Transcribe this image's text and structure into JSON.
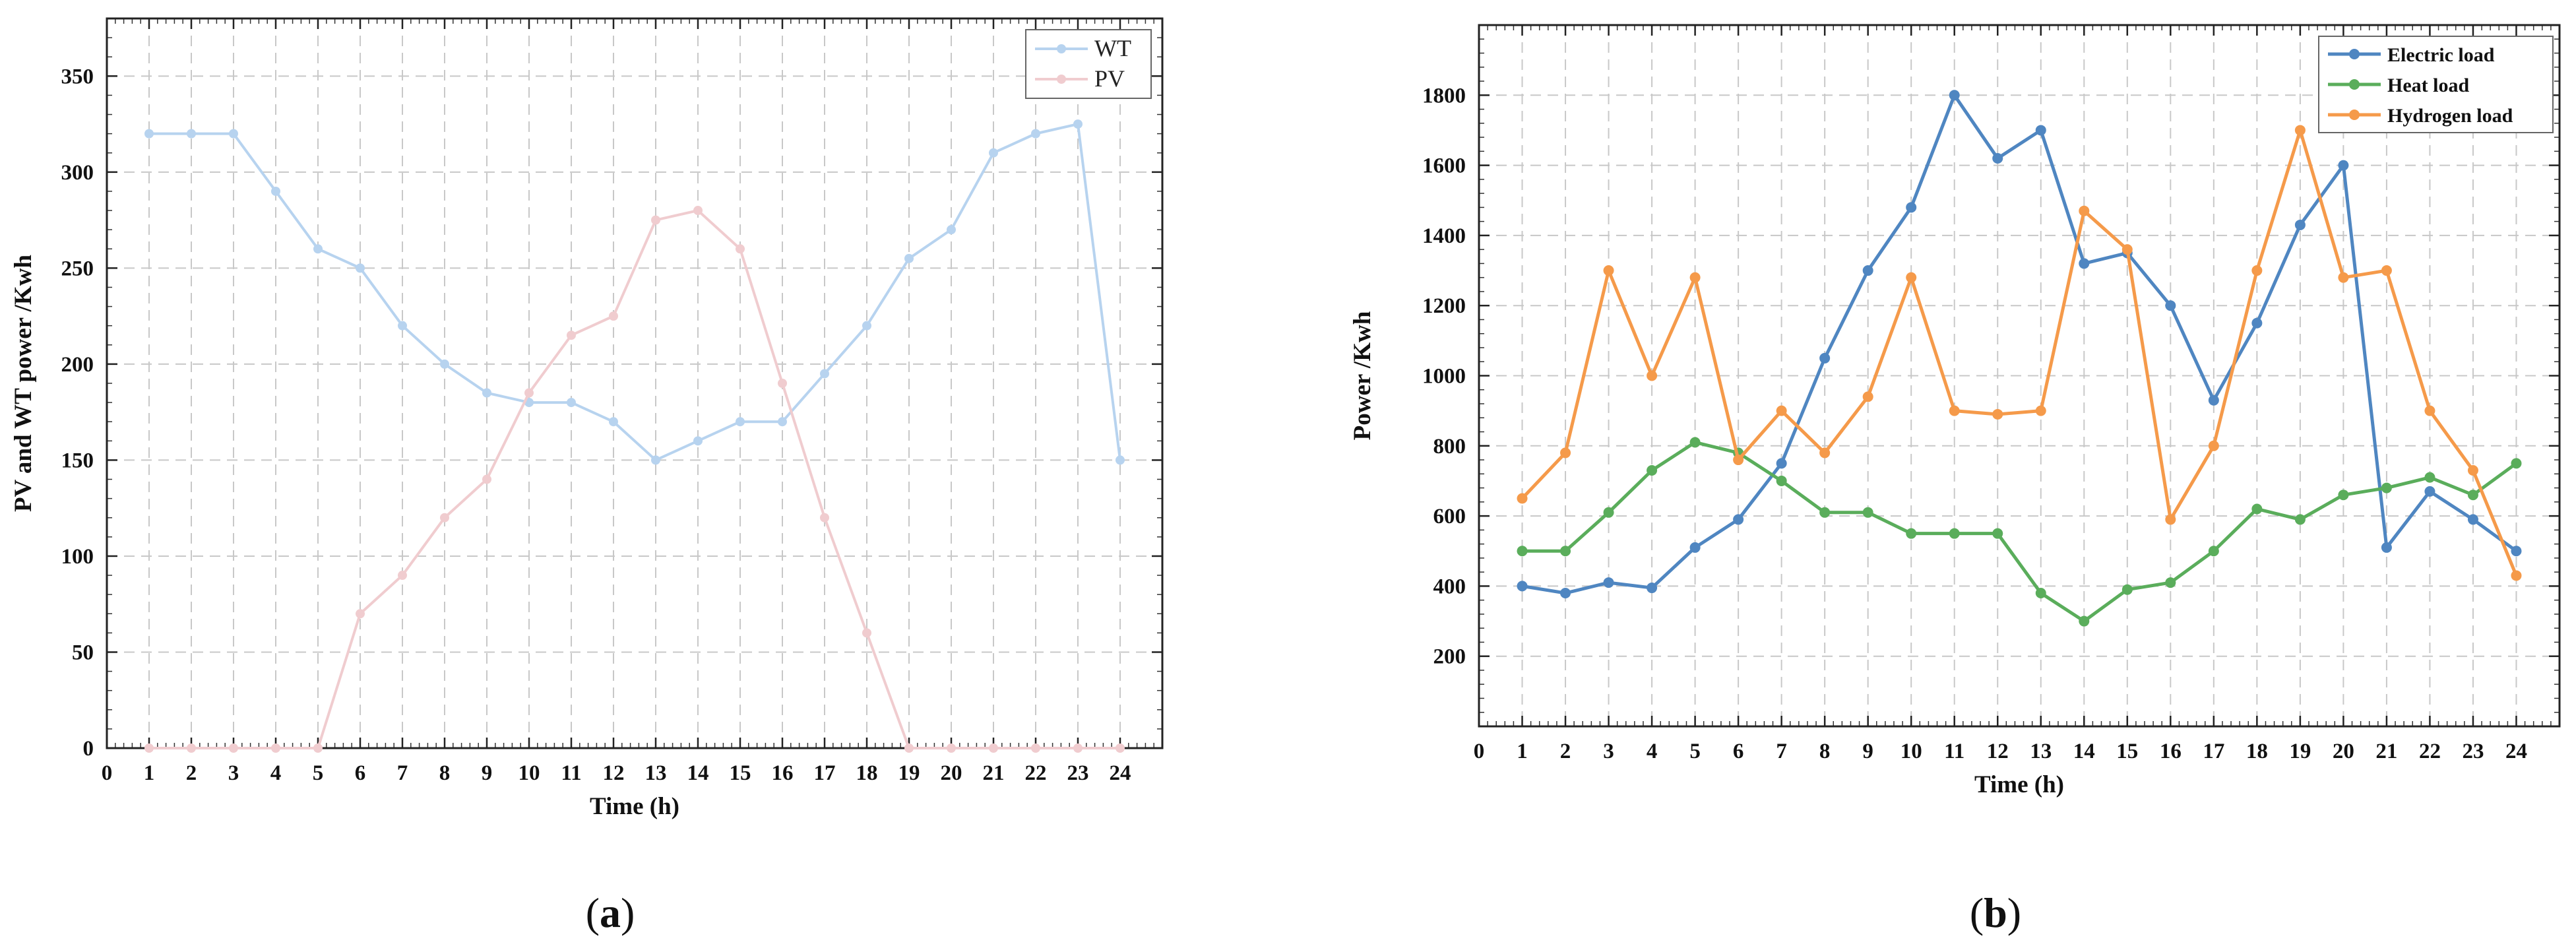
{
  "chart_data": [
    {
      "type": "line",
      "caption": {
        "open": "(",
        "letter": "a",
        "close": ")"
      },
      "xlabel": "Time (h)",
      "ylabel": "PV and WT power /Kwh",
      "xlim": [
        0,
        25
      ],
      "ylim": [
        0,
        380
      ],
      "xticks": [
        0,
        1,
        2,
        3,
        4,
        5,
        6,
        7,
        8,
        9,
        10,
        11,
        12,
        13,
        14,
        15,
        16,
        17,
        18,
        19,
        20,
        21,
        22,
        23,
        24
      ],
      "yticks": [
        0,
        50,
        100,
        150,
        200,
        250,
        300,
        350
      ],
      "grid": true,
      "legend_position": "top-right",
      "x": [
        1,
        2,
        3,
        4,
        5,
        6,
        7,
        8,
        9,
        10,
        11,
        12,
        13,
        14,
        15,
        16,
        17,
        18,
        19,
        20,
        21,
        22,
        23,
        24
      ],
      "series": [
        {
          "name": "WT",
          "color": "#b7d3ef",
          "values": [
            320,
            320,
            320,
            290,
            260,
            250,
            220,
            200,
            185,
            180,
            180,
            170,
            150,
            160,
            170,
            170,
            195,
            220,
            255,
            270,
            310,
            320,
            325,
            150
          ]
        },
        {
          "name": "PV",
          "color": "#f0cccf",
          "values": [
            0,
            0,
            0,
            0,
            0,
            70,
            90,
            120,
            140,
            185,
            215,
            225,
            275,
            280,
            260,
            190,
            120,
            60,
            0,
            0,
            0,
            0,
            0,
            0
          ]
        }
      ]
    },
    {
      "type": "line",
      "caption": {
        "open": "(",
        "letter": "b",
        "close": ")"
      },
      "xlabel": "Time (h)",
      "ylabel": "Power /Kwh",
      "xlim": [
        0,
        25
      ],
      "ylim": [
        0,
        2000
      ],
      "xticks": [
        0,
        1,
        2,
        3,
        4,
        5,
        6,
        7,
        8,
        9,
        10,
        11,
        12,
        13,
        14,
        15,
        16,
        17,
        18,
        19,
        20,
        21,
        22,
        23,
        24
      ],
      "yticks": [
        200,
        400,
        600,
        800,
        1000,
        1200,
        1400,
        1600,
        1800
      ],
      "grid": true,
      "legend_position": "top-right",
      "x": [
        1,
        2,
        3,
        4,
        5,
        6,
        7,
        8,
        9,
        10,
        11,
        12,
        13,
        14,
        15,
        16,
        17,
        18,
        19,
        20,
        21,
        22,
        23,
        24
      ],
      "series": [
        {
          "name": "Electric load",
          "color": "#4f86c1",
          "values": [
            400,
            380,
            410,
            395,
            510,
            590,
            750,
            1050,
            1300,
            1480,
            1800,
            1620,
            1700,
            1320,
            1350,
            1200,
            930,
            1150,
            1430,
            1600,
            510,
            670,
            590,
            500
          ]
        },
        {
          "name": "Heat load",
          "color": "#5aad5b",
          "values": [
            500,
            500,
            610,
            730,
            810,
            780,
            700,
            610,
            610,
            550,
            550,
            550,
            380,
            300,
            390,
            410,
            500,
            620,
            590,
            660,
            680,
            710,
            660,
            750
          ]
        },
        {
          "name": "Hydrogen load",
          "color": "#f59a4a",
          "values": [
            650,
            780,
            1300,
            1000,
            1280,
            760,
            900,
            780,
            940,
            1280,
            900,
            890,
            900,
            1470,
            1360,
            590,
            800,
            1300,
            1700,
            1280,
            1300,
            900,
            730,
            430
          ]
        }
      ]
    }
  ]
}
